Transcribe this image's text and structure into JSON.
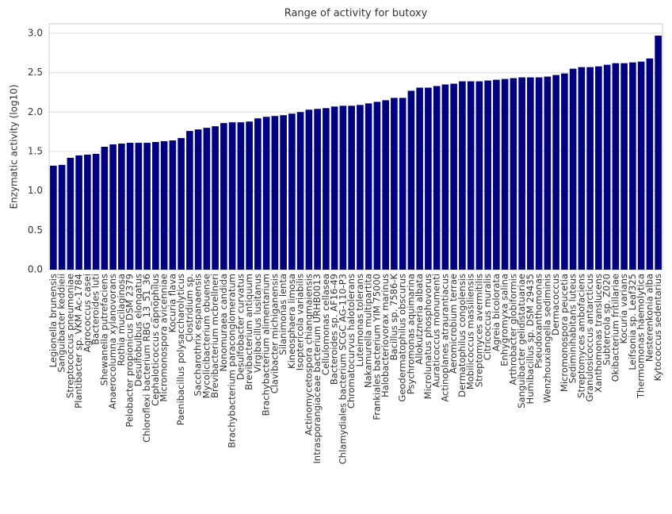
{
  "chart_data": {
    "type": "bar",
    "title": "Range of activity for butoxy",
    "ylabel": "Enzymatic activity (log10)",
    "categories": [
      "Legionella brunensis",
      "Sanguibacter keddieii",
      "Streptococcus pneumoniae",
      "Plantibacter sp. VKM Ac-1784",
      "Agrococcus casei",
      "Bacteroides luti",
      "Shewanella putrefaciens",
      "Anaerocolumna xylanovorans",
      "Rothia mucilaginosa",
      "Pelobacter propionicus DSM 2379",
      "Desulfobulbus elongatus",
      "Chloroflexi bacterium RBG_13_51_36",
      "Cephaloticoccus capnophilus",
      "Micromonospora avicenniae",
      "Kocuria flava",
      "Paenibacillus polysaccharolyticus",
      "Clostridium sp.",
      "Saccharothrix espanaensis",
      "Mycolicibacterium obuense",
      "Brevibacterium mcbrellneri",
      "Nonomuraea candida",
      "Brachybacterium paraconglomeratum",
      "Desulfobacter curvatus",
      "Brevibacterium antiquum",
      "Virgibacillus lusitanus",
      "Brachybacterium alimentarium",
      "Clavibacter michiganensis",
      "Silanimonas lenta",
      "Kineosphaera limosa",
      "Isoptericola variabilis",
      "Actinomycetospora chiangmaiensis",
      "Intrasporangiaceae bacterium URHB0013",
      "Cellulomonas cellasea",
      "Bacteroides sp. AF16-49",
      "Chlamydiales bacterium SCGC AG-110-P3",
      "Chromatocurvus halotolerans",
      "Luteimonas tolerans",
      "Nakamurella multipartita",
      "Frankiales bacterium YIM 75000",
      "Halobacteriovorax marinus",
      "Bacillus sp. 7586-K",
      "Geodermatophilus obscurus",
      "Psychromonas aquimarina",
      "Allokutzneria albata",
      "Microlunatus phosphovorus",
      "Auraticoccus monumenti",
      "Actinoplanes atraurantiacus",
      "Aeromicrobium terrae",
      "Dermatophilus congolensis",
      "Mobilicoccus massiliensis",
      "Streptomyces avermitilis",
      "Citricoccus muralis",
      "Agreia bicolorata",
      "Enhygromyxa salina",
      "Arthrobacter globiformis",
      "Sanguibacter gelidistatuariae",
      "Humibacillus sp. DSM 29435",
      "Pseudoxanthomonas",
      "Wenzhouxiangella sediminis",
      "Dermacoccus",
      "Micromonospora peucetia",
      "Sediminihabitans luteus",
      "Streptomyces ambofaciens",
      "Granulosicoccus antarcticus",
      "Xanthomonas translucens",
      "Subtercola sp. Z020",
      "Okibacterium fritillariae",
      "Kocuria varians",
      "Leifsonia sp. Leaf325",
      "Thermomonas haemolytica",
      "Nesterenkonia alba",
      "Kytococcus sedentarius"
    ],
    "values": [
      1.32,
      1.33,
      1.42,
      1.45,
      1.46,
      1.47,
      1.56,
      1.59,
      1.6,
      1.61,
      1.61,
      1.61,
      1.62,
      1.63,
      1.64,
      1.67,
      1.76,
      1.78,
      1.8,
      1.82,
      1.86,
      1.87,
      1.87,
      1.88,
      1.92,
      1.94,
      1.95,
      1.96,
      1.98,
      2.0,
      2.03,
      2.04,
      2.05,
      2.07,
      2.08,
      2.08,
      2.09,
      2.11,
      2.13,
      2.15,
      2.18,
      2.18,
      2.27,
      2.31,
      2.31,
      2.33,
      2.35,
      2.36,
      2.39,
      2.39,
      2.39,
      2.4,
      2.41,
      2.42,
      2.43,
      2.44,
      2.44,
      2.44,
      2.45,
      2.47,
      2.49,
      2.55,
      2.57,
      2.57,
      2.58,
      2.6,
      2.62,
      2.62,
      2.63,
      2.64,
      2.68,
      2.97
    ],
    "color": "#000080",
    "ylim": [
      0,
      3.12
    ],
    "yticks": [
      {
        "value": 0,
        "label": "0.0"
      },
      {
        "value": 0.5,
        "label": "0.5"
      },
      {
        "value": 1,
        "label": "1.0"
      },
      {
        "value": 1.5,
        "label": "1.5"
      },
      {
        "value": 2,
        "label": "2.0"
      },
      {
        "value": 2.5,
        "label": "2.5"
      },
      {
        "value": 3,
        "label": "3.0"
      }
    ],
    "grid": true
  }
}
